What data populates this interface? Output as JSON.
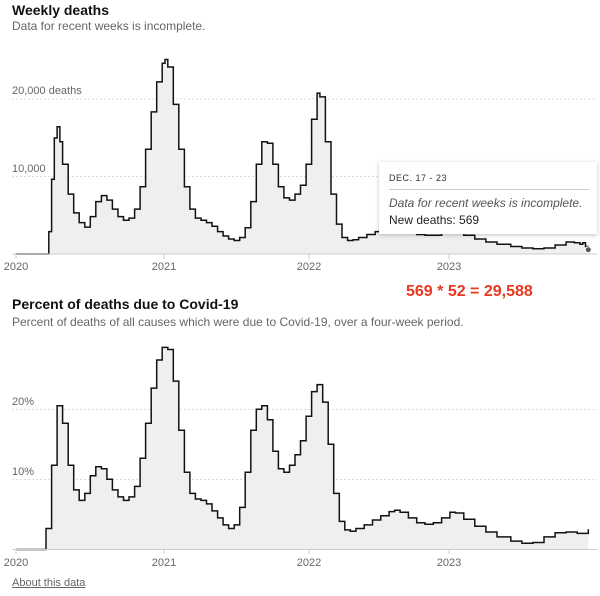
{
  "chart1": {
    "title": "Weekly deaths",
    "subtitle": "Data for recent weeks is incomplete.",
    "y_tick_labels": [
      "20,000 deaths",
      "10,000"
    ],
    "x_tick_labels": [
      "2020",
      "2021",
      "2022",
      "2023"
    ]
  },
  "tooltip": {
    "date": "DEC. 17 - 23",
    "note": "Data for recent weeks is incomplete.",
    "value": "New deaths: 569"
  },
  "annotation": "569 * 52 = 29,588",
  "chart2": {
    "title": "Percent of deaths due to Covid-19",
    "subtitle": "Percent of deaths of all causes which were due to Covid-19, over a four-week period.",
    "y_tick_labels": [
      "20%",
      "10%"
    ],
    "x_tick_labels": [
      "2020",
      "2021",
      "2022",
      "2023"
    ]
  },
  "footer": {
    "about_link": "About this data"
  },
  "colors": {
    "line": "#121212",
    "fill": "#efefef",
    "grid": "#dddddd",
    "axis": "#cccccc",
    "annotation": "#e8381e"
  },
  "chart_data": [
    {
      "type": "area",
      "title": "Weekly deaths",
      "ylim": [
        0,
        27000
      ],
      "y_ticks": [
        10000,
        20000
      ],
      "x_range": [
        "2020-01-01",
        "2023-12-31"
      ],
      "grid": true,
      "series": [
        {
          "points": [
            [
              "2020-01-01",
              0
            ],
            [
              "2020-03-10",
              0
            ],
            [
              "2020-03-24",
              3000
            ],
            [
              "2020-03-31",
              10000
            ],
            [
              "2020-04-07",
              15500
            ],
            [
              "2020-04-14",
              17000
            ],
            [
              "2020-04-21",
              15000
            ],
            [
              "2020-04-28",
              12000
            ],
            [
              "2020-05-12",
              8000
            ],
            [
              "2020-05-26",
              5500
            ],
            [
              "2020-06-09",
              4200
            ],
            [
              "2020-06-23",
              3600
            ],
            [
              "2020-07-07",
              5000
            ],
            [
              "2020-07-21",
              7000
            ],
            [
              "2020-08-04",
              7800
            ],
            [
              "2020-08-18",
              7200
            ],
            [
              "2020-09-01",
              6000
            ],
            [
              "2020-09-15",
              5000
            ],
            [
              "2020-09-29",
              4500
            ],
            [
              "2020-10-13",
              4800
            ],
            [
              "2020-10-27",
              6000
            ],
            [
              "2020-11-10",
              9000
            ],
            [
              "2020-11-24",
              14000
            ],
            [
              "2020-12-08",
              19000
            ],
            [
              "2020-12-22",
              23000
            ],
            [
              "2021-01-05",
              25500
            ],
            [
              "2021-01-12",
              26000
            ],
            [
              "2021-01-19",
              25000
            ],
            [
              "2021-02-02",
              20000
            ],
            [
              "2021-02-16",
              14000
            ],
            [
              "2021-03-02",
              9000
            ],
            [
              "2021-03-16",
              6000
            ],
            [
              "2021-03-30",
              4800
            ],
            [
              "2021-04-13",
              4500
            ],
            [
              "2021-04-27",
              4200
            ],
            [
              "2021-05-11",
              3700
            ],
            [
              "2021-05-25",
              3000
            ],
            [
              "2021-06-08",
              2400
            ],
            [
              "2021-06-22",
              2000
            ],
            [
              "2021-07-06",
              1800
            ],
            [
              "2021-07-20",
              2200
            ],
            [
              "2021-08-03",
              3500
            ],
            [
              "2021-08-17",
              7000
            ],
            [
              "2021-08-31",
              12000
            ],
            [
              "2021-09-14",
              15000
            ],
            [
              "2021-09-28",
              14800
            ],
            [
              "2021-10-12",
              12000
            ],
            [
              "2021-10-26",
              9000
            ],
            [
              "2021-11-09",
              7500
            ],
            [
              "2021-11-23",
              7200
            ],
            [
              "2021-12-07",
              8000
            ],
            [
              "2021-12-21",
              9200
            ],
            [
              "2022-01-04",
              12000
            ],
            [
              "2022-01-18",
              18000
            ],
            [
              "2022-02-01",
              21500
            ],
            [
              "2022-02-08",
              21000
            ],
            [
              "2022-02-22",
              15000
            ],
            [
              "2022-03-08",
              8000
            ],
            [
              "2022-03-22",
              4000
            ],
            [
              "2022-04-05",
              2200
            ],
            [
              "2022-04-19",
              1800
            ],
            [
              "2022-05-03",
              1900
            ],
            [
              "2022-05-17",
              2200
            ],
            [
              "2022-06-07",
              2600
            ],
            [
              "2022-06-28",
              3000
            ],
            [
              "2022-07-19",
              3200
            ],
            [
              "2022-08-09",
              3200
            ],
            [
              "2022-08-30",
              3000
            ],
            [
              "2022-09-20",
              2800
            ],
            [
              "2022-10-11",
              2600
            ],
            [
              "2022-11-01",
              2500
            ],
            [
              "2022-11-22",
              2500
            ],
            [
              "2022-12-13",
              2900
            ],
            [
              "2023-01-03",
              3200
            ],
            [
              "2023-01-17",
              3000
            ],
            [
              "2023-02-07",
              2500
            ],
            [
              "2023-03-07",
              2000
            ],
            [
              "2023-04-04",
              1600
            ],
            [
              "2023-05-02",
              1300
            ],
            [
              "2023-06-06",
              1000
            ],
            [
              "2023-07-04",
              800
            ],
            [
              "2023-08-01",
              700
            ],
            [
              "2023-08-29",
              800
            ],
            [
              "2023-09-26",
              1200
            ],
            [
              "2023-10-24",
              1600
            ],
            [
              "2023-11-14",
              1500
            ],
            [
              "2023-11-28",
              1300
            ],
            [
              "2023-12-05",
              1500
            ],
            [
              "2023-12-12",
              1000
            ],
            [
              "2023-12-19",
              569
            ]
          ]
        }
      ]
    },
    {
      "type": "area",
      "title": "Percent of deaths due to Covid-19",
      "ylim": [
        0,
        30
      ],
      "y_ticks": [
        10,
        20
      ],
      "x_range": [
        "2020-01-01",
        "2023-12-31"
      ],
      "grid": true,
      "series": [
        {
          "points": [
            [
              "2020-01-01",
              0
            ],
            [
              "2020-03-03",
              0
            ],
            [
              "2020-03-17",
              3
            ],
            [
              "2020-03-31",
              12
            ],
            [
              "2020-04-14",
              20.5
            ],
            [
              "2020-04-28",
              18
            ],
            [
              "2020-05-12",
              12
            ],
            [
              "2020-05-26",
              8.5
            ],
            [
              "2020-06-09",
              7
            ],
            [
              "2020-06-23",
              8
            ],
            [
              "2020-07-07",
              10.5
            ],
            [
              "2020-07-21",
              11.8
            ],
            [
              "2020-08-04",
              11.5
            ],
            [
              "2020-08-18",
              10
            ],
            [
              "2020-09-01",
              8.5
            ],
            [
              "2020-09-15",
              7.5
            ],
            [
              "2020-09-29",
              7
            ],
            [
              "2020-10-13",
              7.5
            ],
            [
              "2020-10-27",
              9
            ],
            [
              "2020-11-10",
              13
            ],
            [
              "2020-11-24",
              18
            ],
            [
              "2020-12-08",
              23
            ],
            [
              "2020-12-22",
              27
            ],
            [
              "2021-01-05",
              28.8
            ],
            [
              "2021-01-19",
              28.5
            ],
            [
              "2021-02-02",
              24
            ],
            [
              "2021-02-16",
              17
            ],
            [
              "2021-03-02",
              11
            ],
            [
              "2021-03-16",
              8
            ],
            [
              "2021-03-30",
              7.2
            ],
            [
              "2021-04-13",
              7
            ],
            [
              "2021-04-27",
              6.5
            ],
            [
              "2021-05-11",
              5.5
            ],
            [
              "2021-05-25",
              4.5
            ],
            [
              "2021-06-08",
              3.5
            ],
            [
              "2021-06-22",
              3
            ],
            [
              "2021-07-06",
              3.5
            ],
            [
              "2021-07-20",
              6
            ],
            [
              "2021-08-03",
              11
            ],
            [
              "2021-08-17",
              17
            ],
            [
              "2021-08-31",
              20
            ],
            [
              "2021-09-14",
              20.5
            ],
            [
              "2021-09-28",
              18.5
            ],
            [
              "2021-10-12",
              14
            ],
            [
              "2021-10-26",
              11.5
            ],
            [
              "2021-11-09",
              11
            ],
            [
              "2021-11-23",
              12
            ],
            [
              "2021-12-07",
              13.5
            ],
            [
              "2021-12-21",
              15.5
            ],
            [
              "2022-01-04",
              19
            ],
            [
              "2022-01-18",
              22.5
            ],
            [
              "2022-02-01",
              23.5
            ],
            [
              "2022-02-15",
              21
            ],
            [
              "2022-03-01",
              15
            ],
            [
              "2022-03-15",
              8
            ],
            [
              "2022-03-29",
              4
            ],
            [
              "2022-04-12",
              2.8
            ],
            [
              "2022-04-26",
              2.6
            ],
            [
              "2022-05-10",
              3
            ],
            [
              "2022-05-31",
              3.5
            ],
            [
              "2022-06-21",
              4.2
            ],
            [
              "2022-07-12",
              4.8
            ],
            [
              "2022-08-02",
              5.4
            ],
            [
              "2022-08-16",
              5.6
            ],
            [
              "2022-08-30",
              5.3
            ],
            [
              "2022-09-20",
              4.5
            ],
            [
              "2022-10-11",
              3.8
            ],
            [
              "2022-11-01",
              3.6
            ],
            [
              "2022-11-22",
              3.8
            ],
            [
              "2022-12-13",
              4.5
            ],
            [
              "2023-01-03",
              5.3
            ],
            [
              "2023-01-17",
              5.2
            ],
            [
              "2023-02-07",
              4.3
            ],
            [
              "2023-03-07",
              3.3
            ],
            [
              "2023-04-04",
              2.5
            ],
            [
              "2023-05-02",
              1.8
            ],
            [
              "2023-06-06",
              1.2
            ],
            [
              "2023-07-04",
              0.9
            ],
            [
              "2023-08-01",
              1
            ],
            [
              "2023-08-29",
              1.8
            ],
            [
              "2023-09-26",
              2.4
            ],
            [
              "2023-10-24",
              2.5
            ],
            [
              "2023-11-21",
              2.3
            ],
            [
              "2023-12-19",
              2.9
            ]
          ]
        }
      ]
    }
  ]
}
